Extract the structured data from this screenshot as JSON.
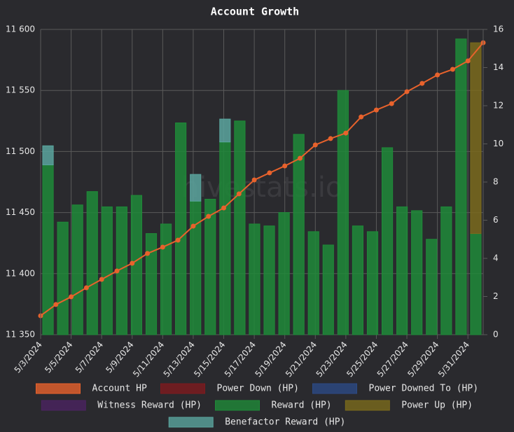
{
  "chart_data": {
    "type": "bar",
    "title": "Account Growth",
    "watermark": "hivestats.io",
    "categories": [
      "5/3/2024",
      null,
      "5/5/2024",
      null,
      "5/7/2024",
      null,
      "5/9/2024",
      null,
      "5/11/2024",
      null,
      "5/13/2024",
      null,
      "5/15/2024",
      null,
      "5/17/2024",
      null,
      "5/19/2024",
      null,
      "5/21/2024",
      null,
      "5/23/2024",
      null,
      "5/25/2024",
      null,
      "5/27/2024",
      null,
      "5/29/2024",
      null,
      "5/31/2024",
      null
    ],
    "series": [
      {
        "name": "Account HP",
        "color": "#e8622c",
        "type": "line",
        "axis": "y",
        "values": [
          11365.5,
          11374.7,
          11381,
          11388.4,
          11395.3,
          11402.2,
          11408.5,
          11416.5,
          11421.7,
          11427.4,
          11438.9,
          11446.9,
          11453.8,
          11465.3,
          11476.7,
          11482.5,
          11488.2,
          11494.5,
          11505.4,
          11510.6,
          11515.1,
          11528.3,
          11534,
          11539.2,
          11549,
          11555.8,
          11562.7,
          11567.3,
          11574.2,
          11589.1
        ]
      },
      {
        "name": "Power Down (HP)",
        "color": "#7e1a1e",
        "axis": "y2"
      },
      {
        "name": "Power Downed To (HP)",
        "color": "#2c4a85",
        "axis": "y2"
      },
      {
        "name": "Witness Reward (HP)",
        "color": "#4b2360",
        "axis": "y2"
      },
      {
        "name": "Reward (HP)",
        "color": "#1f8a38",
        "axis": "y2",
        "values": [
          8.9,
          5.9,
          6.8,
          7.5,
          6.7,
          6.7,
          7.3,
          5.3,
          5.8,
          11.1,
          7.0,
          7.1,
          10.1,
          11.2,
          5.8,
          5.7,
          6.4,
          10.5,
          5.4,
          4.7,
          12.8,
          5.7,
          5.4,
          9.8,
          6.7,
          6.5,
          5.0,
          6.7,
          15.5,
          5.3
        ]
      },
      {
        "name": "Power Up (HP)",
        "color": "#7a6a1c",
        "axis": "y2",
        "values": [
          null,
          null,
          null,
          null,
          null,
          null,
          null,
          null,
          null,
          null,
          null,
          null,
          null,
          null,
          null,
          null,
          null,
          null,
          null,
          null,
          null,
          null,
          null,
          null,
          null,
          null,
          null,
          null,
          null,
          10.0
        ]
      },
      {
        "name": "Benefactor Reward (HP)",
        "color": "#5aa59e",
        "axis": "y2",
        "values": [
          1.0,
          null,
          null,
          null,
          null,
          null,
          null,
          null,
          null,
          null,
          1.4,
          null,
          1.2,
          null,
          null,
          null,
          null,
          null,
          null,
          null,
          null,
          null,
          null,
          null,
          null,
          null,
          null,
          null,
          null,
          null
        ]
      }
    ],
    "ylim": [
      11350,
      11600
    ],
    "yticks": [
      {
        "value": 11350,
        "label": "11 350"
      },
      {
        "value": 11400,
        "label": "11 400"
      },
      {
        "value": 11450,
        "label": "11 450"
      },
      {
        "value": 11500,
        "label": "11 500"
      },
      {
        "value": 11550,
        "label": "11 550"
      },
      {
        "value": 11600,
        "label": "11 600"
      }
    ],
    "y2lim": [
      0,
      16
    ],
    "y2ticks": [
      0,
      2,
      4,
      6,
      8,
      10,
      12,
      14,
      16
    ],
    "grid": true,
    "stacked": true,
    "legend": "bottom"
  }
}
